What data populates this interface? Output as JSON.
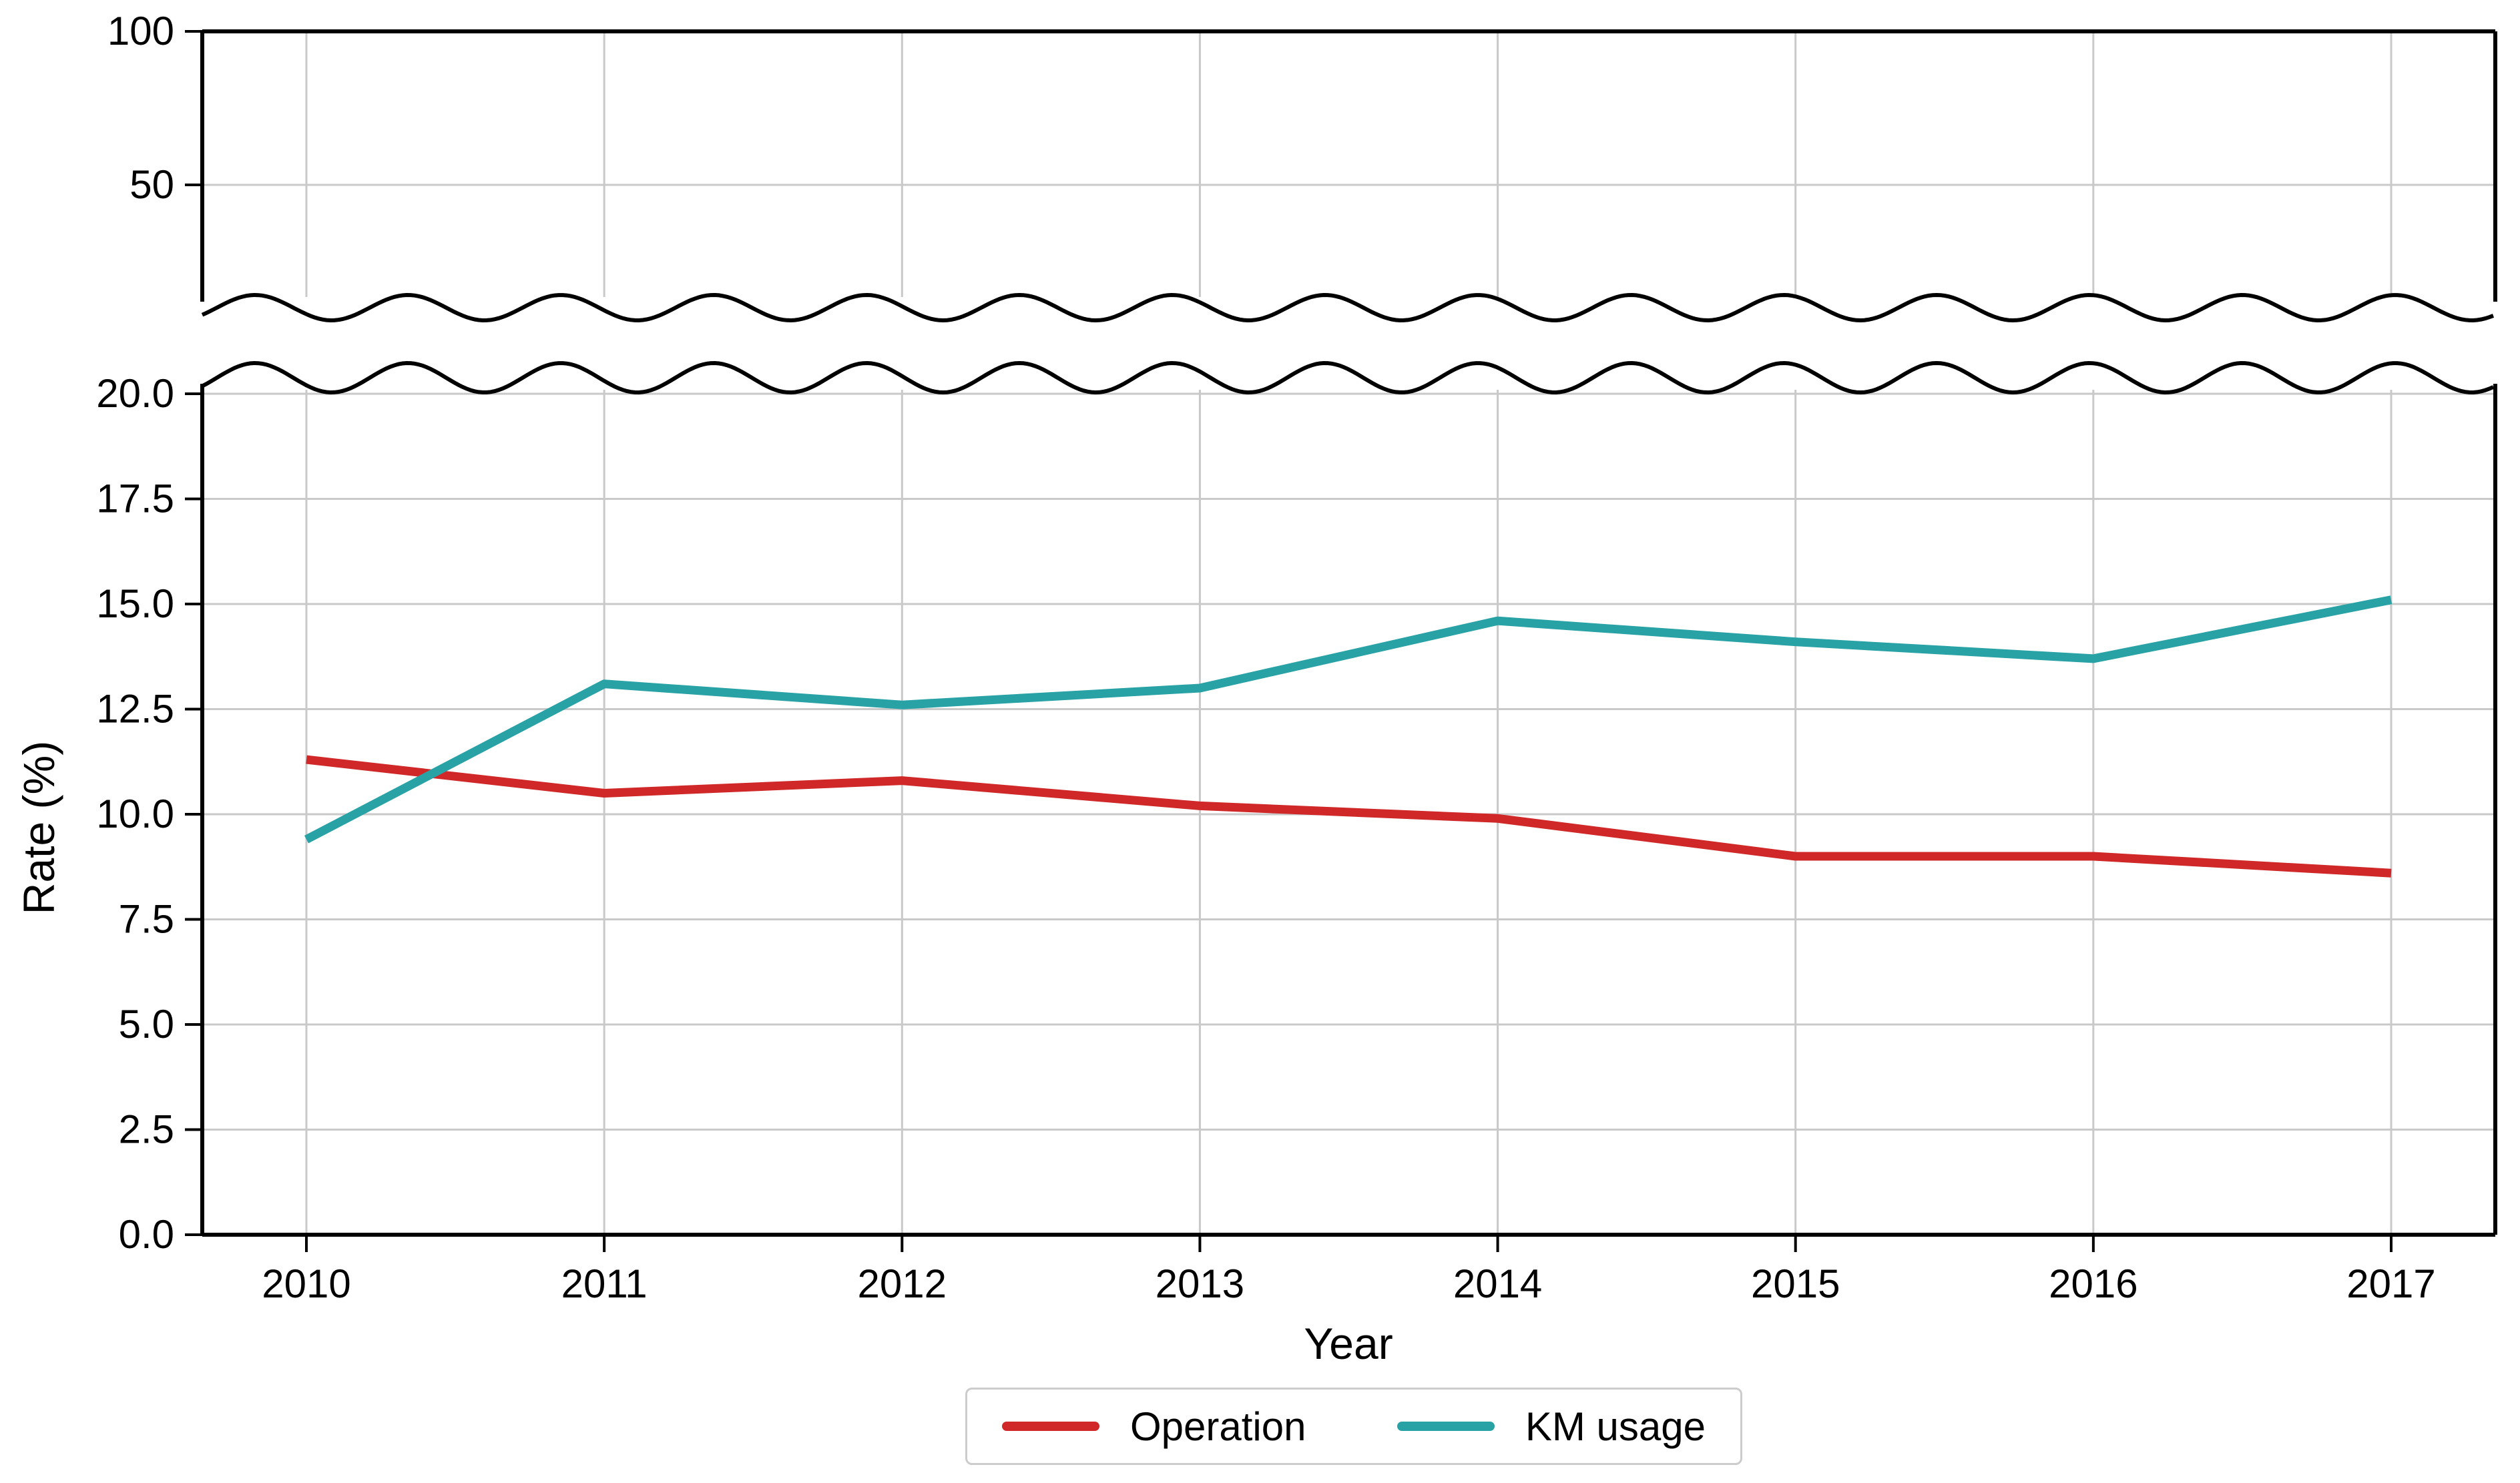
{
  "chart_data": {
    "type": "line",
    "title": "",
    "xlabel": "Year",
    "ylabel": "Rate (%)",
    "categories": [
      "2010",
      "2011",
      "2012",
      "2013",
      "2014",
      "2015",
      "2016",
      "2017"
    ],
    "series": [
      {
        "name": "Operation",
        "color": "#d02829",
        "values": [
          11.3,
          10.5,
          10.8,
          10.2,
          9.9,
          9.0,
          9.0,
          8.6
        ]
      },
      {
        "name": "KM usage",
        "color": "#28a2a4",
        "values": [
          9.4,
          13.1,
          12.6,
          13.0,
          14.6,
          14.1,
          13.7,
          15.1
        ]
      }
    ],
    "y_axis_break": true,
    "upper_panel": {
      "ticks": [
        {
          "value": 100,
          "label": "100"
        },
        {
          "value": 50,
          "label": "50"
        }
      ],
      "gridline_values": [
        50
      ],
      "ylim_top": 100
    },
    "lower_panel": {
      "ticks": [
        {
          "value": 20,
          "label": "20.0"
        },
        {
          "value": 17.5,
          "label": "17.5"
        },
        {
          "value": 15,
          "label": "15.0"
        },
        {
          "value": 12.5,
          "label": "12.5"
        },
        {
          "value": 10,
          "label": "10.0"
        },
        {
          "value": 7.5,
          "label": "7.5"
        },
        {
          "value": 5,
          "label": "5.0"
        },
        {
          "value": 2.5,
          "label": "2.5"
        },
        {
          "value": 0,
          "label": "0.0"
        }
      ],
      "ylim": [
        0,
        20
      ]
    },
    "grid": true,
    "legend": {
      "position": "bottom-center",
      "entries": [
        "Operation",
        "KM usage"
      ]
    },
    "colors": {
      "grid": "#c9c9c9",
      "axis": "#000000",
      "background": "#ffffff"
    }
  }
}
